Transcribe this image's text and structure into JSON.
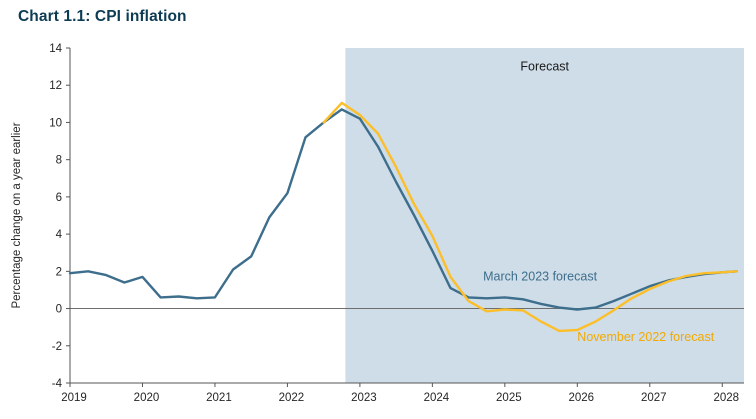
{
  "chart_data": {
    "type": "line",
    "title": "Chart 1.1: CPI inflation",
    "ylabel": "Percentage change on a year earlier",
    "xlabel": "",
    "xlim": [
      2019,
      2028.3
    ],
    "ylim": [
      -4,
      14
    ],
    "xticks": [
      2019,
      2020,
      2021,
      2022,
      2023,
      2024,
      2025,
      2026,
      2027,
      2028
    ],
    "yticks": [
      -4,
      -2,
      0,
      2,
      4,
      6,
      8,
      10,
      12,
      14
    ],
    "grid": false,
    "legend_position": "inline-annotations",
    "forecast_start": 2022.8,
    "forecast_region_color": "#cfdde8",
    "title_color": "#0c3b53",
    "axis_color": "#555555",
    "zero_line_color": "#6e6e6e",
    "series": [
      {
        "name": "March 2023 forecast",
        "color": "#3d6e8c",
        "points": [
          [
            2019,
            1.9
          ],
          [
            2019.25,
            2.0
          ],
          [
            2019.5,
            1.8
          ],
          [
            2019.75,
            1.4
          ],
          [
            2020,
            1.7
          ],
          [
            2020.25,
            0.6
          ],
          [
            2020.5,
            0.65
          ],
          [
            2020.75,
            0.55
          ],
          [
            2021,
            0.6
          ],
          [
            2021.25,
            2.1
          ],
          [
            2021.5,
            2.8
          ],
          [
            2021.75,
            4.9
          ],
          [
            2022,
            6.2
          ],
          [
            2022.25,
            9.2
          ],
          [
            2022.5,
            10.0
          ],
          [
            2022.75,
            10.7
          ],
          [
            2023,
            10.2
          ],
          [
            2023.25,
            8.7
          ],
          [
            2023.5,
            6.8
          ],
          [
            2023.75,
            5.0
          ],
          [
            2024,
            3.1
          ],
          [
            2024.25,
            1.1
          ],
          [
            2024.5,
            0.6
          ],
          [
            2024.75,
            0.55
          ],
          [
            2025,
            0.6
          ],
          [
            2025.25,
            0.5
          ],
          [
            2025.5,
            0.25
          ],
          [
            2025.75,
            0.05
          ],
          [
            2026,
            -0.05
          ],
          [
            2026.25,
            0.05
          ],
          [
            2026.5,
            0.4
          ],
          [
            2026.75,
            0.8
          ],
          [
            2027,
            1.2
          ],
          [
            2027.25,
            1.5
          ],
          [
            2027.5,
            1.7
          ],
          [
            2027.75,
            1.85
          ],
          [
            2028,
            1.95
          ],
          [
            2028.2,
            2.0
          ]
        ]
      },
      {
        "name": "November 2022 forecast",
        "color": "#fcbf2a",
        "points": [
          [
            2022.5,
            10.0
          ],
          [
            2022.75,
            11.05
          ],
          [
            2023,
            10.4
          ],
          [
            2023.25,
            9.4
          ],
          [
            2023.5,
            7.6
          ],
          [
            2023.75,
            5.6
          ],
          [
            2024,
            3.9
          ],
          [
            2024.25,
            1.7
          ],
          [
            2024.5,
            0.4
          ],
          [
            2024.75,
            -0.15
          ],
          [
            2025,
            -0.05
          ],
          [
            2025.25,
            -0.1
          ],
          [
            2025.5,
            -0.7
          ],
          [
            2025.75,
            -1.2
          ],
          [
            2026,
            -1.15
          ],
          [
            2026.25,
            -0.7
          ],
          [
            2026.5,
            -0.1
          ],
          [
            2026.75,
            0.55
          ],
          [
            2027,
            1.05
          ],
          [
            2027.25,
            1.45
          ],
          [
            2027.5,
            1.75
          ],
          [
            2027.75,
            1.9
          ],
          [
            2028,
            1.95
          ],
          [
            2028.2,
            2.0
          ]
        ]
      }
    ],
    "annotations": [
      {
        "text": "Forecast",
        "x": 2025.55,
        "y": 12.8,
        "color": "#1a1a1a",
        "anchor": "middle"
      },
      {
        "text": "March 2023 forecast",
        "x": 2024.7,
        "y": 1.5,
        "color": "#3d6e8c",
        "anchor": "start"
      },
      {
        "text": "November 2022 forecast",
        "x": 2026.0,
        "y": -1.75,
        "color": "#f2a900",
        "anchor": "start"
      }
    ]
  }
}
